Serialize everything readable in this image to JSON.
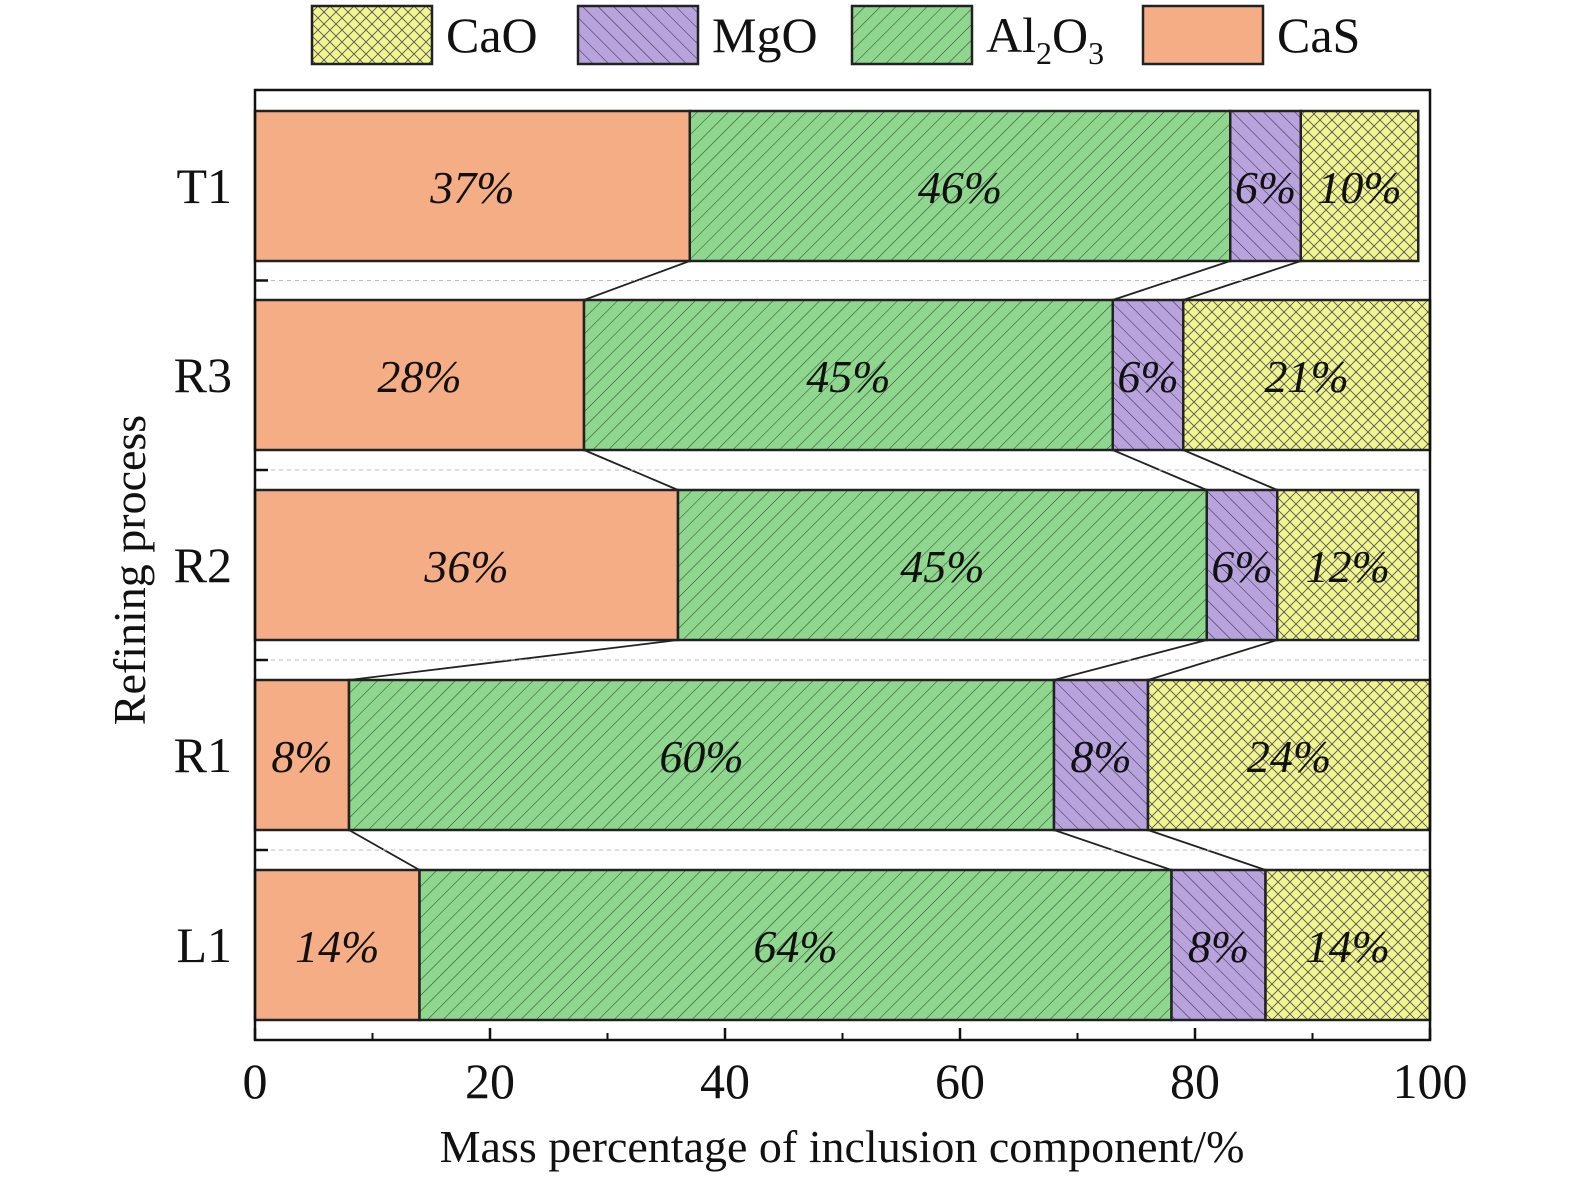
{
  "chart_data": {
    "type": "bar",
    "orientation": "horizontal",
    "stacked": true,
    "categories": [
      "T1",
      "R3",
      "R2",
      "R1",
      "L1"
    ],
    "series": [
      {
        "name": "CaS",
        "values": [
          37,
          28,
          36,
          8,
          14
        ],
        "color": "#f5ad85",
        "pattern": "solid"
      },
      {
        "name": "Al2O3",
        "values": [
          46,
          45,
          45,
          60,
          64
        ],
        "color": "#8fd68f",
        "pattern": "diagonal-hatch"
      },
      {
        "name": "MgO",
        "values": [
          6,
          6,
          6,
          8,
          8
        ],
        "color": "#b9a3dc",
        "pattern": "diagonal-hatch"
      },
      {
        "name": "CaO",
        "values": [
          10,
          21,
          12,
          24,
          14
        ],
        "color": "#f1f590",
        "pattern": "crosshatch"
      }
    ],
    "segment_labels": [
      [
        "37%",
        "46%",
        "6%",
        "10%"
      ],
      [
        "28%",
        "45%",
        "6%",
        "21%"
      ],
      [
        "36%",
        "45%",
        "6%",
        "12%"
      ],
      [
        "8%",
        "60%",
        "8%",
        "24%"
      ],
      [
        "14%",
        "64%",
        "8%",
        "14%"
      ]
    ],
    "legend": {
      "placement": "top",
      "order": [
        "CaO",
        "MgO",
        "Al2O3",
        "CaS"
      ],
      "labels": {
        "CaO": {
          "main": "CaO"
        },
        "MgO": {
          "main": "MgO"
        },
        "Al2O3": {
          "main": "Al",
          "sub1": "2",
          "mid": "O",
          "sub2": "3"
        },
        "CaS": {
          "main": "CaS"
        }
      }
    },
    "xlabel": "Mass percentage of inclusion component/%",
    "ylabel": "Refining process",
    "xlim": [
      0,
      100
    ],
    "xticks": [
      0,
      20,
      40,
      60,
      80,
      100
    ],
    "connectors": true,
    "grid": false
  }
}
